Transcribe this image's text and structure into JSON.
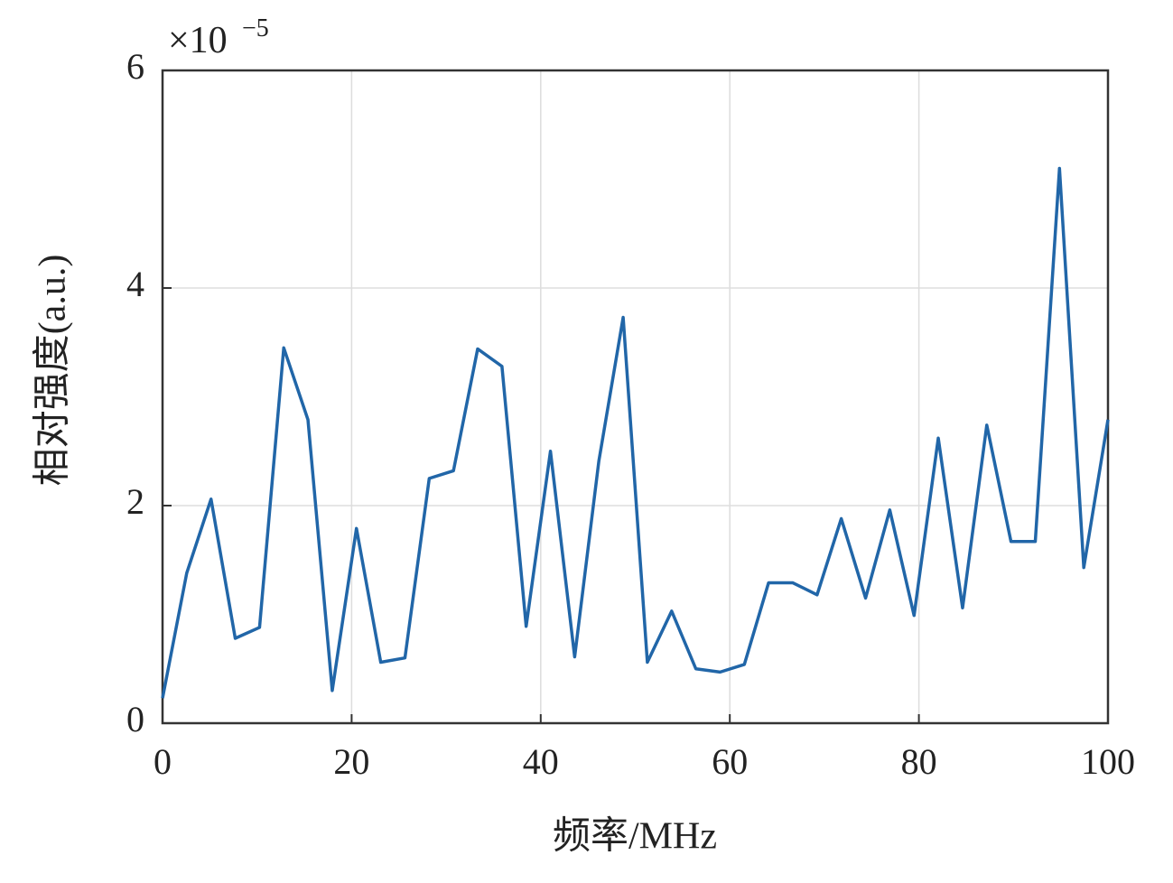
{
  "chart_data": {
    "type": "line",
    "y_multiplier": {
      "base": "×10",
      "exponent": "−5"
    },
    "xlabel": "频率/MHz",
    "ylabel": "相对强度(a.u.)",
    "x": [
      0,
      2.56,
      5.13,
      7.69,
      10.26,
      12.82,
      15.38,
      17.95,
      20.51,
      23.08,
      25.64,
      28.21,
      30.77,
      33.33,
      35.9,
      38.46,
      41.03,
      43.59,
      46.15,
      48.72,
      51.28,
      53.85,
      56.41,
      58.97,
      61.54,
      64.1,
      66.67,
      69.23,
      71.79,
      74.36,
      76.92,
      79.49,
      82.05,
      84.62,
      87.18,
      89.74,
      92.31,
      94.87,
      97.44,
      100
    ],
    "series": [
      {
        "color": "#2166a8",
        "values": [
          0.23,
          1.38,
          2.06,
          0.78,
          0.88,
          3.45,
          2.79,
          0.3,
          1.79,
          0.56,
          0.6,
          2.25,
          2.32,
          3.44,
          3.28,
          0.89,
          2.5,
          0.61,
          2.41,
          3.73,
          0.56,
          1.03,
          0.5,
          0.47,
          0.54,
          1.29,
          1.29,
          1.18,
          1.88,
          1.15,
          1.96,
          0.99,
          2.62,
          1.06,
          2.74,
          1.67,
          1.67,
          5.1,
          1.43,
          2.79
        ]
      }
    ],
    "xlim": [
      0,
      100
    ],
    "xticks": [
      0,
      20,
      40,
      60,
      80,
      100
    ],
    "ylim": [
      0,
      6
    ],
    "yticks": [
      0,
      2,
      4,
      6
    ],
    "grid": true
  }
}
